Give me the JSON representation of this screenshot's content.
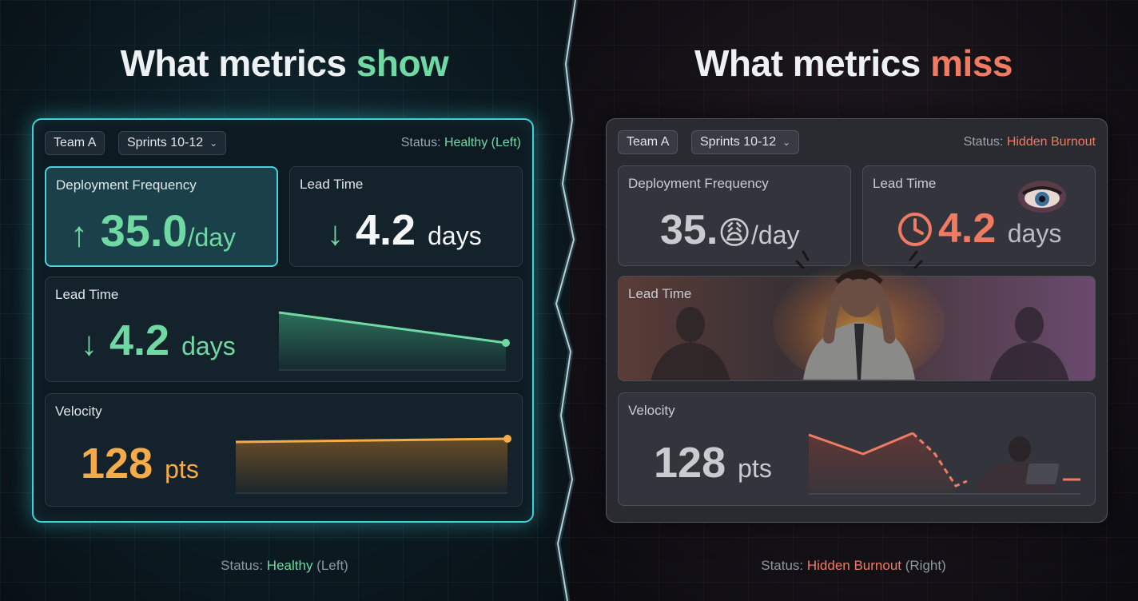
{
  "left": {
    "heading_prefix": "What metrics ",
    "heading_accent": "show",
    "team_chip": "Team A",
    "sprint_select": "Sprints 10-12",
    "status_label": "Status: ",
    "status_value": "Healthy (Left)",
    "cards": {
      "deploy": {
        "label": "Deployment Frequency",
        "arrow": "↑",
        "value": "35.0",
        "unit": "/day"
      },
      "lead_small": {
        "label": "Lead Time",
        "arrow": "↓",
        "value": "4.2",
        "unit": "days"
      },
      "lead_wide": {
        "label": "Lead Time",
        "arrow": "↓",
        "value": "4.2",
        "unit": "days"
      },
      "velocity": {
        "label": "Velocity",
        "value": "128",
        "unit": "pts"
      }
    },
    "caption_prefix": "Status: ",
    "caption_value": "Healthy",
    "caption_suffix": " (Left)",
    "colors": {
      "accent": "#6fd8a3",
      "glow": "#3fd1d9",
      "velocity": "#f5ab47"
    }
  },
  "right": {
    "heading_prefix": "What metrics ",
    "heading_accent": "miss",
    "team_chip": "Team A",
    "sprint_select": "Sprints 10-12",
    "status_label": "Status: ",
    "status_value": "Hidden Burnout",
    "cards": {
      "deploy": {
        "label": "Deployment Frequency",
        "value": "35.",
        "unit": "/day",
        "emoji": "😩"
      },
      "lead_small": {
        "label": "Lead Time",
        "value": "4.2",
        "unit": "days",
        "icon": "clock-icon"
      },
      "lead_wide": {
        "label": "Lead Time"
      },
      "velocity": {
        "label": "Velocity",
        "value": "128",
        "unit": "pts"
      }
    },
    "caption_prefix": "Status: ",
    "caption_value": "Hidden Burnout",
    "caption_suffix": " (Right)",
    "colors": {
      "accent": "#f07a62"
    }
  }
}
